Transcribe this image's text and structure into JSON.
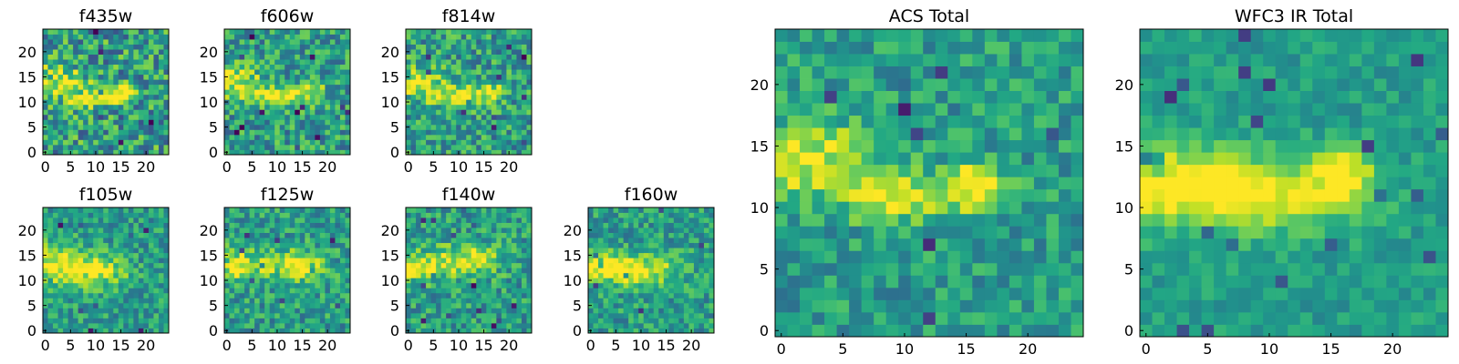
{
  "chart_data": {
    "type": "heatmap",
    "grid_size": 25,
    "colormap": "viridis",
    "panels": [
      {
        "id": "f435w",
        "title": "f435w",
        "size": "small",
        "xticks": [
          0,
          5,
          10,
          15,
          20
        ],
        "yticks": [
          0,
          5,
          10,
          15,
          20
        ],
        "bright_spots": [
          [
            2,
            14,
            5,
            3
          ],
          [
            10,
            11,
            5,
            2
          ],
          [
            16,
            12,
            2,
            2
          ]
        ],
        "noise": 0.42
      },
      {
        "id": "f606w",
        "title": "f606w",
        "size": "small",
        "xticks": [
          0,
          5,
          10,
          15,
          20
        ],
        "yticks": [
          0,
          5,
          10,
          15,
          20
        ],
        "bright_spots": [
          [
            2,
            14,
            5,
            3
          ],
          [
            9,
            11,
            5,
            2
          ],
          [
            16,
            12,
            3,
            2
          ]
        ],
        "noise": 0.36
      },
      {
        "id": "f814w",
        "title": "f814w",
        "size": "small",
        "xticks": [
          0,
          5,
          10,
          15,
          20
        ],
        "yticks": [
          0,
          5,
          10,
          15,
          20
        ],
        "bright_spots": [
          [
            2,
            14,
            5,
            3
          ],
          [
            9,
            11,
            5,
            2
          ],
          [
            16,
            12,
            3,
            2
          ]
        ],
        "noise": 0.36
      },
      {
        "id": "f105w",
        "title": "f105w",
        "size": "small",
        "xticks": [
          0,
          5,
          10,
          15,
          20
        ],
        "yticks": [
          0,
          5,
          10,
          15,
          20
        ],
        "bright_spots": [
          [
            1,
            13,
            6,
            4
          ],
          [
            10,
            12,
            6,
            3
          ]
        ],
        "noise": 0.28
      },
      {
        "id": "f125w",
        "title": "f125w",
        "size": "small",
        "xticks": [
          0,
          5,
          10,
          15,
          20
        ],
        "yticks": [
          0,
          5,
          10,
          15,
          20
        ],
        "bright_spots": [
          [
            2,
            13,
            6,
            3
          ],
          [
            14,
            13,
            5,
            3
          ]
        ],
        "noise": 0.3
      },
      {
        "id": "f140w",
        "title": "f140w",
        "size": "small",
        "xticks": [
          0,
          5,
          10,
          15,
          20
        ],
        "yticks": [
          0,
          5,
          10,
          15,
          20
        ],
        "bright_spots": [
          [
            1,
            13,
            6,
            3
          ],
          [
            12,
            14,
            6,
            3
          ]
        ],
        "noise": 0.3
      },
      {
        "id": "f160w",
        "title": "f160w",
        "size": "small",
        "xticks": [
          0,
          5,
          10,
          15,
          20
        ],
        "yticks": [
          0,
          5,
          10,
          15,
          20
        ],
        "bright_spots": [
          [
            1,
            13,
            6,
            3
          ],
          [
            10,
            12,
            7,
            3
          ]
        ],
        "noise": 0.28
      },
      {
        "id": "acs",
        "title": "ACS Total",
        "size": "large",
        "xticks": [
          0,
          5,
          10,
          15,
          20
        ],
        "yticks": [
          0,
          5,
          10,
          15,
          20
        ],
        "bright_spots": [
          [
            2,
            14,
            5,
            3
          ],
          [
            10,
            11,
            5,
            2
          ],
          [
            16,
            12,
            2,
            2
          ]
        ],
        "noise": 0.26
      },
      {
        "id": "wfc3",
        "title": "WFC3 IR Total",
        "size": "large",
        "xticks": [
          0,
          5,
          10,
          15,
          20
        ],
        "yticks": [
          0,
          5,
          10,
          15,
          20
        ],
        "bright_spots": [
          [
            1,
            12,
            7,
            3
          ],
          [
            10,
            11,
            8,
            3
          ],
          [
            16,
            13,
            2,
            2
          ]
        ],
        "noise": 0.16
      }
    ]
  }
}
